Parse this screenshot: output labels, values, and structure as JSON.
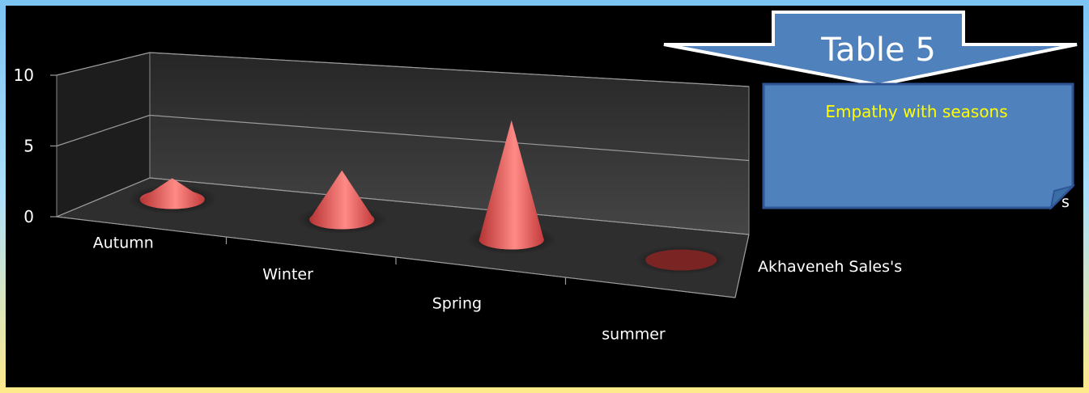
{
  "chart_data": {
    "type": "bar",
    "bar_shape": "cone",
    "view": "3d",
    "categories": [
      "Autumn",
      "Winter",
      "Spring",
      "summer"
    ],
    "series": [
      {
        "name": "Akhaveneh Sales's",
        "values": [
          1.5,
          3.5,
          8.5,
          0
        ]
      }
    ],
    "y_ticks": [
      "0",
      "5",
      "10"
    ],
    "ylim": [
      0,
      10
    ],
    "grid": true,
    "colors": {
      "cone": "#e8605f",
      "background": "#000000",
      "wall": "#3c3c3c",
      "floor": "#282828"
    }
  },
  "callout": {
    "title": "Table 5",
    "note": "Empathy with seasons",
    "note_partial": "s",
    "colors": {
      "arrow": "#4f81bd",
      "note_fill": "#4f81bd",
      "note_text": "#ffff00"
    }
  }
}
